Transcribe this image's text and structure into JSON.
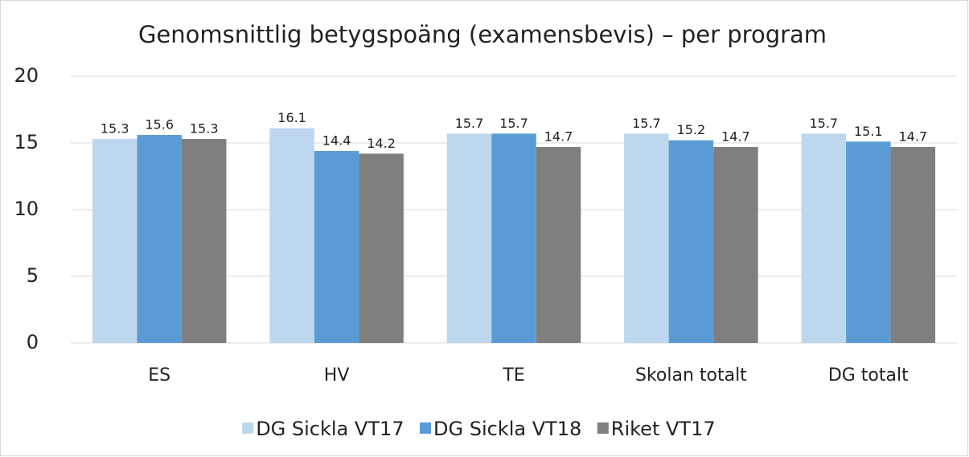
{
  "chart_data": {
    "type": "bar",
    "title": "Genomsnittlig betygspoäng (examensbevis) – per program",
    "categories": [
      "ES",
      "HV",
      "TE",
      "Skolan totalt",
      "DG totalt"
    ],
    "series": [
      {
        "name": "DG Sickla VT17",
        "color": "#bdd7ee",
        "values": [
          15.3,
          16.1,
          15.7,
          15.7,
          15.7
        ]
      },
      {
        "name": "DG Sickla VT18",
        "color": "#5b9bd5",
        "values": [
          15.6,
          14.4,
          15.7,
          15.2,
          15.1
        ]
      },
      {
        "name": "Riket VT17",
        "color": "#7f7f7f",
        "values": [
          15.3,
          14.2,
          14.7,
          14.7,
          14.7
        ]
      }
    ],
    "ylim": [
      0,
      20
    ],
    "yticks": [
      0,
      5,
      10,
      15,
      20
    ],
    "grid": true,
    "legend": "bottom"
  }
}
